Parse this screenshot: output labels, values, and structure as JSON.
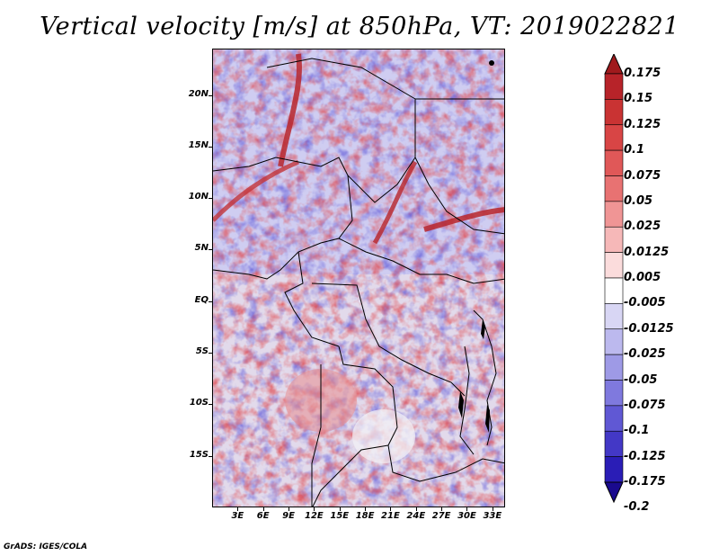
{
  "title": "Vertical velocity [m/s] at 850hPa, VT: 2019022821",
  "credit": "GrADS: IGES/COLA",
  "map": {
    "lat_labels": [
      "20N",
      "15N",
      "10N",
      "5N",
      "EQ",
      "5S",
      "10S",
      "15S"
    ],
    "lon_labels": [
      "3E",
      "6E",
      "9E",
      "12E",
      "15E",
      "18E",
      "21E",
      "24E",
      "27E",
      "30E",
      "33E"
    ],
    "lat_range": [
      -20,
      24.5
    ],
    "lon_range": [
      0,
      34.5
    ]
  },
  "colorbar": {
    "labels": [
      "0.175",
      "0.15",
      "0.125",
      "0.1",
      "0.075",
      "0.05",
      "0.025",
      "0.0125",
      "0.005",
      "-0.005",
      "-0.0125",
      "-0.025",
      "-0.05",
      "-0.075",
      "-0.1",
      "-0.125",
      "-0.175",
      "-0.2"
    ],
    "colors": [
      "#a11a1e",
      "#b72329",
      "#c93333",
      "#d84545",
      "#e05858",
      "#e87272",
      "#f09595",
      "#f6b8b8",
      "#fbdcdc",
      "#ffffff",
      "#d8d6f4",
      "#bcb9ee",
      "#9e9ae6",
      "#7f79de",
      "#6058d4",
      "#4338c6",
      "#2a1db6",
      "#14099c"
    ],
    "top_color": "#a01a1d",
    "bottom_color": "#1a0a8e"
  }
}
